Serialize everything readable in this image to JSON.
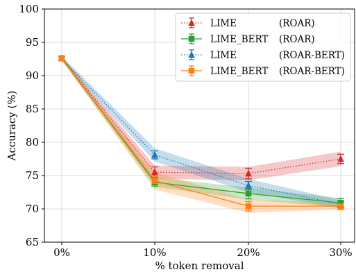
{
  "chart_data": {
    "type": "line",
    "categories": [
      "0%",
      "10%",
      "20%",
      "30%"
    ],
    "xlabel": "% token removal",
    "ylabel": "Accuracy (%)",
    "ylim": [
      65,
      100
    ],
    "yticks": [
      65,
      70,
      75,
      80,
      85,
      90,
      95,
      100
    ],
    "grid": true,
    "legend_position": "top-right",
    "series": [
      {
        "name": "LIME",
        "dataset": "(ROAR)",
        "color": "#d62728",
        "linestyle": "dotted",
        "marker": "triangle",
        "values": [
          92.6,
          75.5,
          75.3,
          77.5
        ],
        "err": [
          0.3,
          0.8,
          0.8,
          0.7
        ],
        "band": [
          0.3,
          1.0,
          1.0,
          1.1
        ]
      },
      {
        "name": "LIME_BERT",
        "dataset": "(ROAR)",
        "color": "#2ca02c",
        "linestyle": "solid",
        "marker": "square",
        "values": [
          92.6,
          74.0,
          72.3,
          70.9
        ],
        "err": [
          0.3,
          0.6,
          0.8,
          0.7
        ],
        "band": [
          0.3,
          0.7,
          0.9,
          0.7
        ]
      },
      {
        "name": "LIME",
        "dataset": "(ROAR-BERT)",
        "color": "#1f77b4",
        "linestyle": "dotted",
        "marker": "triangle",
        "values": [
          92.6,
          78.1,
          73.5,
          70.7
        ],
        "err": [
          0.3,
          0.6,
          0.6,
          0.5
        ],
        "band": [
          0.3,
          1.0,
          1.0,
          0.6
        ]
      },
      {
        "name": "LIME_BERT",
        "dataset": "(ROAR-BERT)",
        "color": "#ff7f0e",
        "linestyle": "solid",
        "marker": "square",
        "values": [
          92.6,
          74.2,
          70.4,
          70.4
        ],
        "err": [
          0.3,
          0.6,
          0.7,
          0.5
        ],
        "band": [
          0.3,
          1.3,
          1.0,
          0.5
        ]
      }
    ]
  }
}
